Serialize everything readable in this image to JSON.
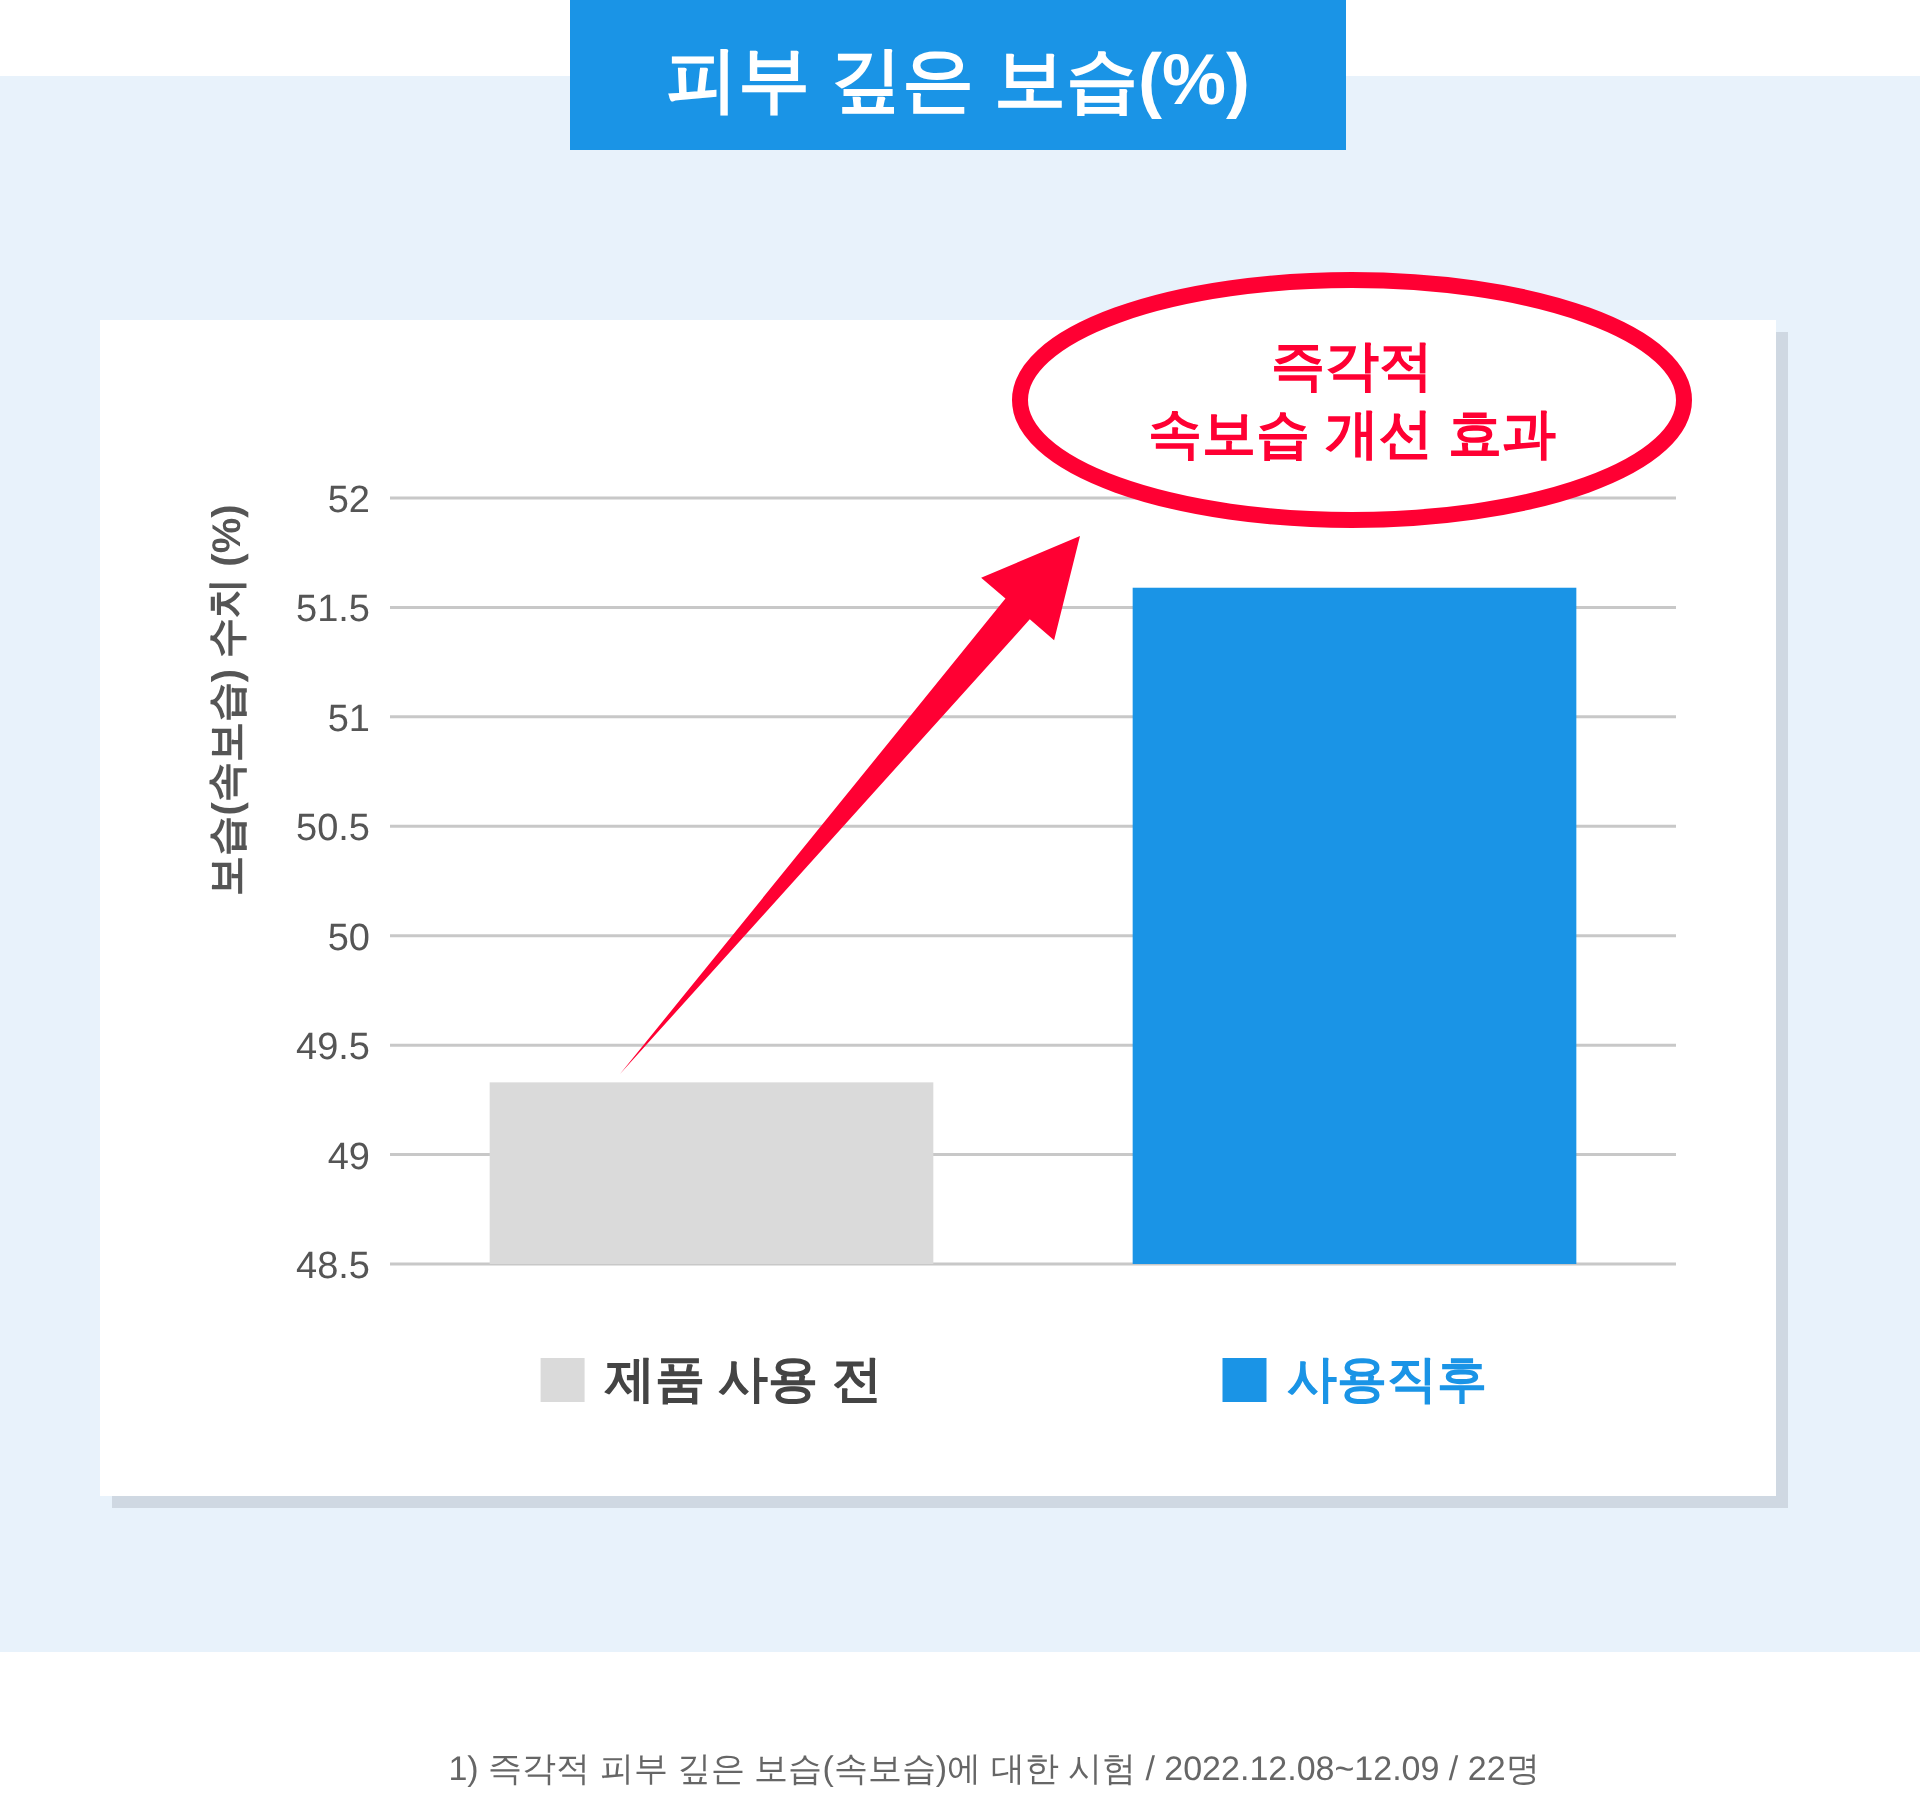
{
  "chart_data": {
    "type": "bar",
    "title": "피부 깊은 보습(%)",
    "ylabel": "보습(속보습) 수치 (%)",
    "categories": [
      "제품 사용 전",
      "사용직후"
    ],
    "values": [
      49.33,
      51.59
    ],
    "colors": [
      "#dadada",
      "#1a94e6"
    ],
    "ylim": [
      48.5,
      52
    ],
    "yticks": [
      48.5,
      49,
      49.5,
      50,
      50.5,
      51,
      51.5,
      52
    ],
    "grid": "y",
    "annotations": [
      "즉각적\n속보습 개선 효과",
      "1) 즉각적 피부 깊은 보습(속보습)에 대한 시험 / 2022.12.08~12.09 / 22명"
    ]
  }
}
